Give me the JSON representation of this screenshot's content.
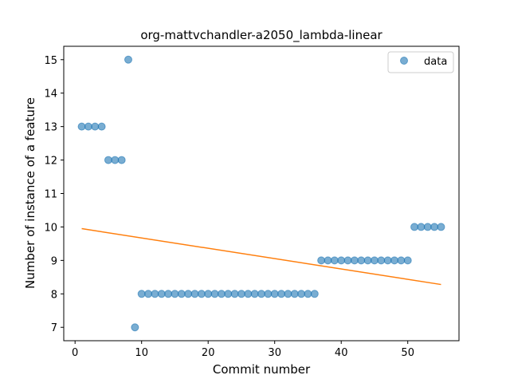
{
  "chart_data": {
    "type": "scatter",
    "title": "org-mattvchandler-a2050_lambda-linear",
    "xlabel": "Commit number",
    "ylabel": "Number of instance of a feature",
    "xlim": [
      -1.7,
      57.7
    ],
    "ylim": [
      6.6,
      15.4
    ],
    "xticks": [
      0,
      10,
      20,
      30,
      40,
      50
    ],
    "yticks": [
      7,
      8,
      9,
      10,
      11,
      12,
      13,
      14,
      15
    ],
    "grid": false,
    "legend": {
      "position": "top-right",
      "entries": [
        "data"
      ]
    },
    "series": [
      {
        "name": "data",
        "kind": "scatter",
        "color": "#1f77b4",
        "x": [
          1,
          2,
          3,
          4,
          5,
          6,
          7,
          8,
          9,
          10,
          11,
          12,
          13,
          14,
          15,
          16,
          17,
          18,
          19,
          20,
          21,
          22,
          23,
          24,
          25,
          26,
          27,
          28,
          29,
          30,
          31,
          32,
          33,
          34,
          35,
          36,
          37,
          38,
          39,
          40,
          41,
          42,
          43,
          44,
          45,
          46,
          47,
          48,
          49,
          50,
          51,
          52,
          53,
          54,
          55
        ],
        "y": [
          13,
          13,
          13,
          13,
          12,
          12,
          12,
          15,
          7,
          8,
          8,
          8,
          8,
          8,
          8,
          8,
          8,
          8,
          8,
          8,
          8,
          8,
          8,
          8,
          8,
          8,
          8,
          8,
          8,
          8,
          8,
          8,
          8,
          8,
          8,
          8,
          9,
          9,
          9,
          9,
          9,
          9,
          9,
          9,
          9,
          9,
          9,
          9,
          9,
          9,
          10,
          10,
          10,
          10,
          10
        ]
      },
      {
        "kind": "line",
        "color": "#ff7f0e",
        "x": [
          1,
          55
        ],
        "y": [
          9.95,
          8.28
        ]
      }
    ]
  }
}
